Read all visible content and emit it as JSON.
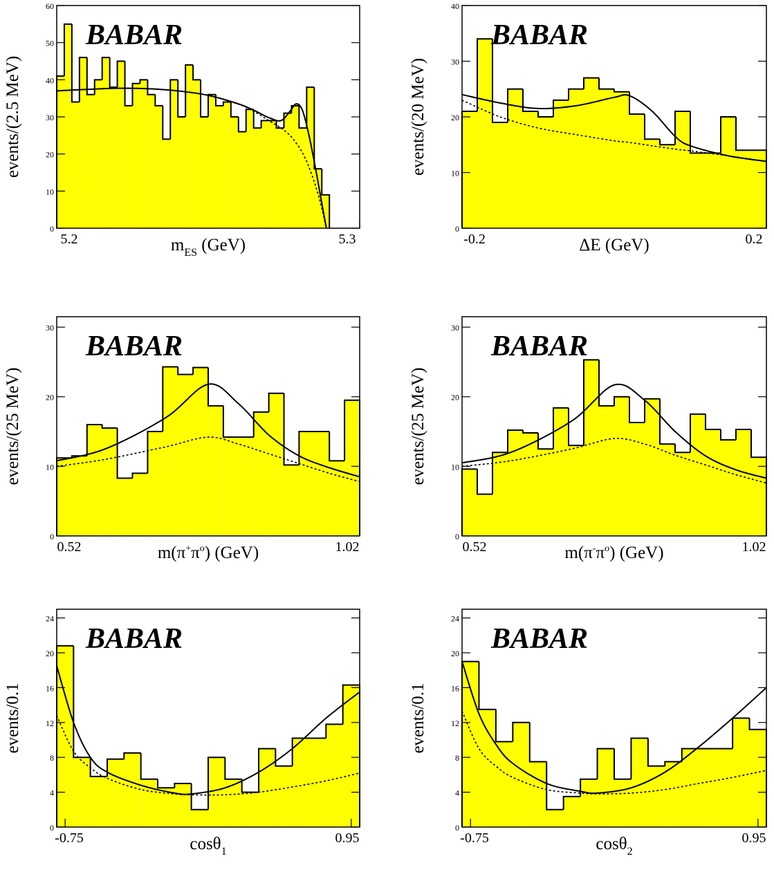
{
  "chart_data": [
    {
      "type": "histogram",
      "logo": "BABAR",
      "ylabel": "events/(2.5 MeV)",
      "xlabel": [
        {
          "text": "m"
        },
        {
          "text": "ES",
          "shift": "sub"
        },
        {
          "text": " (GeV)"
        }
      ],
      "xlim": [
        5.2,
        5.3
      ],
      "ylim": [
        0,
        60
      ],
      "xticks": [
        5.2,
        5.3
      ],
      "yticks": [
        0,
        10,
        20,
        30,
        40,
        50,
        60
      ],
      "bins": [
        5.2,
        5.2025,
        5.205,
        5.2075,
        5.21,
        5.2125,
        5.215,
        5.2175,
        5.22,
        5.2225,
        5.225,
        5.2275,
        5.23,
        5.2325,
        5.235,
        5.2375,
        5.24,
        5.2425,
        5.245,
        5.2475,
        5.25,
        5.2525,
        5.255,
        5.2575,
        5.26,
        5.2625,
        5.265,
        5.2675,
        5.27,
        5.2725,
        5.275,
        5.2775,
        5.28,
        5.2825,
        5.285,
        5.2875,
        5.29
      ],
      "values": [
        41,
        55,
        34,
        46,
        36,
        40,
        46,
        38,
        45,
        33,
        39,
        40,
        36,
        33,
        24,
        40,
        30,
        44,
        40,
        30,
        36,
        33,
        34,
        30,
        26,
        32,
        27,
        29,
        29,
        27,
        31,
        33,
        27,
        38,
        16,
        9
      ],
      "color": "#ffff00",
      "curve_x": [
        5.2,
        5.21,
        5.22,
        5.23,
        5.24,
        5.25,
        5.26,
        5.265,
        5.27,
        5.274,
        5.277,
        5.279,
        5.281,
        5.283,
        5.285,
        5.287,
        5.289
      ],
      "fit": [
        37,
        37.4,
        37.7,
        37.6,
        37,
        35.8,
        33.5,
        31.8,
        29.8,
        29,
        31.5,
        33.5,
        32,
        26,
        18,
        9,
        0
      ],
      "background": [
        37,
        37.4,
        37.7,
        37.6,
        37,
        35.8,
        33.4,
        31.5,
        29,
        27,
        25,
        23,
        20.5,
        17,
        12.5,
        7,
        0
      ]
    },
    {
      "type": "histogram",
      "logo": "BABAR",
      "ylabel": "events/(20 MeV)",
      "xlabel": [
        {
          "text": "ΔE (GeV)"
        }
      ],
      "xlim": [
        -0.2,
        0.2
      ],
      "ylim": [
        0,
        40
      ],
      "xticks": [
        -0.2,
        0.2
      ],
      "yticks": [
        0,
        10,
        20,
        30,
        40
      ],
      "bins": [
        -0.2,
        -0.18,
        -0.16,
        -0.14,
        -0.12,
        -0.1,
        -0.08,
        -0.06,
        -0.04,
        -0.02,
        0,
        0.02,
        0.04,
        0.06,
        0.08,
        0.1,
        0.12,
        0.14,
        0.16,
        0.18,
        0.2
      ],
      "values": [
        21,
        34,
        19,
        25,
        21,
        20,
        23,
        25,
        27,
        25,
        24.5,
        20.5,
        16,
        15,
        21,
        13.5,
        13.5,
        20,
        14,
        14
      ],
      "color": "#ffff00",
      "curve_x": [
        -0.2,
        -0.15,
        -0.1,
        -0.05,
        0,
        0.02,
        0.05,
        0.08,
        0.1,
        0.15,
        0.2
      ],
      "fit": [
        24,
        22.5,
        21.5,
        22,
        23.5,
        23.8,
        21,
        16.5,
        14.8,
        13,
        12
      ],
      "background": [
        23,
        20,
        18,
        16.8,
        15.7,
        15.4,
        14.8,
        14.2,
        13.9,
        13,
        12
      ]
    },
    {
      "type": "histogram",
      "logo": "BABAR",
      "ylabel": "events/(25 MeV)",
      "xlabel": [
        {
          "text": "m(π"
        },
        {
          "text": "+",
          "shift": "sup"
        },
        {
          "text": "π"
        },
        {
          "text": "o",
          "shift": "sup"
        },
        {
          "text": ") (GeV)"
        }
      ],
      "xlim": [
        0.52,
        1.02
      ],
      "ylim": [
        0,
        31.5
      ],
      "xticks": [
        0.52,
        1.02
      ],
      "yticks": [
        0,
        10,
        20,
        30
      ],
      "bins": [
        0.52,
        0.545,
        0.57,
        0.595,
        0.62,
        0.645,
        0.67,
        0.695,
        0.72,
        0.745,
        0.77,
        0.795,
        0.82,
        0.845,
        0.87,
        0.895,
        0.92,
        0.945,
        0.97,
        0.995,
        1.02
      ],
      "values": [
        11.2,
        11.5,
        16,
        15.5,
        8.3,
        9,
        15,
        24.3,
        23.2,
        24.2,
        18.7,
        14.2,
        14.2,
        17.8,
        20.5,
        10.2,
        15,
        15,
        10.8,
        19.5
      ],
      "color": "#ffff00",
      "curve_x": [
        0.52,
        0.6,
        0.7,
        0.77,
        0.82,
        0.87,
        0.92,
        0.97,
        1.02
      ],
      "fit": [
        10.8,
        12.5,
        17,
        21.8,
        19,
        14.5,
        11.5,
        9.8,
        8.5
      ],
      "background": [
        10,
        11,
        12.8,
        14.2,
        13.2,
        11.8,
        10.4,
        9,
        7.8
      ]
    },
    {
      "type": "histogram",
      "logo": "BABAR",
      "ylabel": "events/(25 MeV)",
      "xlabel": [
        {
          "text": "m(π"
        },
        {
          "text": "-",
          "shift": "sup"
        },
        {
          "text": "π"
        },
        {
          "text": "o",
          "shift": "sup"
        },
        {
          "text": ") (GeV)"
        }
      ],
      "xlim": [
        0.52,
        1.02
      ],
      "ylim": [
        0,
        31.5
      ],
      "xticks": [
        0.52,
        1.02
      ],
      "yticks": [
        0,
        10,
        20,
        30
      ],
      "bins": [
        0.52,
        0.545,
        0.57,
        0.595,
        0.62,
        0.645,
        0.67,
        0.695,
        0.72,
        0.745,
        0.77,
        0.795,
        0.82,
        0.845,
        0.87,
        0.895,
        0.92,
        0.945,
        0.97,
        0.995,
        1.02
      ],
      "values": [
        9.6,
        6,
        12,
        15.2,
        14.8,
        12.5,
        18.4,
        13,
        25.3,
        18.7,
        20,
        16.3,
        19.7,
        13.2,
        12,
        17.5,
        15.3,
        13.8,
        15.3,
        11.3
      ],
      "color": "#ffff00",
      "curve_x": [
        0.52,
        0.6,
        0.7,
        0.77,
        0.82,
        0.87,
        0.92,
        0.97,
        1.02
      ],
      "fit": [
        10.5,
        12,
        16.5,
        21.7,
        19.5,
        15,
        11.5,
        9.5,
        8.3
      ],
      "background": [
        10,
        10.8,
        12.5,
        14,
        13.2,
        11.6,
        10.2,
        8.8,
        7.6
      ]
    },
    {
      "type": "histogram",
      "logo": "BABAR",
      "ylabel": "events/0.1",
      "xlabel": [
        {
          "text": "cosθ"
        },
        {
          "text": "1",
          "shift": "sub"
        }
      ],
      "xlim": [
        -0.8,
        1.0
      ],
      "ylim": [
        0,
        25
      ],
      "xticks": [
        -0.75,
        0.95
      ],
      "yticks": [
        0,
        4,
        8,
        12,
        16,
        20,
        24
      ],
      "bins": [
        -0.8,
        -0.7,
        -0.6,
        -0.5,
        -0.4,
        -0.3,
        -0.2,
        -0.1,
        0,
        0.1,
        0.2,
        0.3,
        0.4,
        0.5,
        0.6,
        0.7,
        0.8,
        0.9,
        1.0
      ],
      "values": [
        20.8,
        8,
        5.8,
        7.8,
        8.5,
        5.5,
        4.5,
        5,
        2,
        8,
        5.5,
        4,
        9,
        7,
        10.2,
        10.2,
        11.8,
        16.3
      ],
      "color": "#ffff00",
      "curve_x": [
        -0.8,
        -0.7,
        -0.6,
        -0.5,
        -0.3,
        -0.1,
        0,
        0.2,
        0.4,
        0.6,
        0.8,
        1.0
      ],
      "fit": [
        18.5,
        12,
        8,
        6.3,
        4.8,
        3.9,
        3.8,
        4.5,
        6.3,
        9,
        12.5,
        15.5
      ],
      "background": [
        12.8,
        8.7,
        6.8,
        5.6,
        4.3,
        3.8,
        3.7,
        3.7,
        4,
        4.6,
        5.3,
        6.2
      ]
    },
    {
      "type": "histogram",
      "logo": "BABAR",
      "ylabel": "events/0.1",
      "xlabel": [
        {
          "text": "cosθ"
        },
        {
          "text": "2",
          "shift": "sub"
        }
      ],
      "xlim": [
        -0.8,
        1.0
      ],
      "ylim": [
        0,
        25
      ],
      "xticks": [
        -0.75,
        0.95
      ],
      "yticks": [
        0,
        4,
        8,
        12,
        16,
        20,
        24
      ],
      "bins": [
        -0.8,
        -0.7,
        -0.6,
        -0.5,
        -0.4,
        -0.3,
        -0.2,
        -0.1,
        0,
        0.1,
        0.2,
        0.3,
        0.4,
        0.5,
        0.6,
        0.7,
        0.8,
        0.9,
        1.0
      ],
      "values": [
        19,
        13.5,
        9.8,
        12,
        7.5,
        2,
        3.5,
        5.5,
        9,
        5.5,
        10.2,
        7,
        7.5,
        9,
        9,
        9,
        12.5,
        11.2
      ],
      "color": "#ffff00",
      "curve_x": [
        -0.8,
        -0.7,
        -0.6,
        -0.5,
        -0.3,
        -0.1,
        0,
        0.2,
        0.4,
        0.6,
        0.8,
        1.0
      ],
      "fit": [
        19,
        13,
        9.5,
        7.3,
        5,
        4.1,
        3.9,
        4.5,
        6.3,
        9.2,
        12.5,
        16
      ],
      "background": [
        13.3,
        9,
        7,
        5.7,
        4.3,
        3.9,
        3.8,
        3.9,
        4.3,
        5,
        5.7,
        6.5
      ]
    }
  ]
}
